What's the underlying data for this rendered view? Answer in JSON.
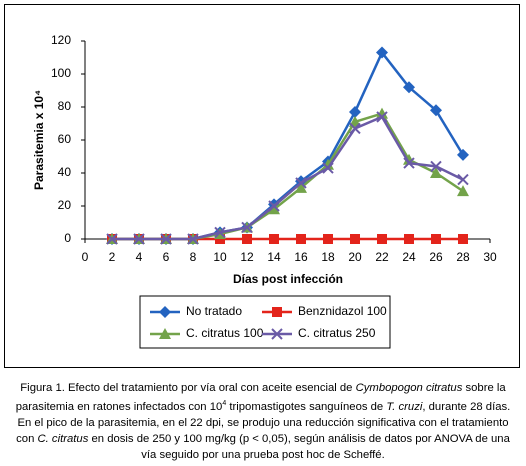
{
  "chart_data": {
    "type": "line",
    "x_label": "Días post infección",
    "y_label": "Parasitemia x 10⁴",
    "x": [
      2,
      4,
      6,
      8,
      10,
      12,
      14,
      16,
      18,
      20,
      22,
      24,
      26,
      28
    ],
    "xlim": [
      0,
      30
    ],
    "xticks": [
      0,
      2,
      4,
      6,
      8,
      10,
      12,
      14,
      16,
      18,
      20,
      22,
      24,
      26,
      28,
      30
    ],
    "ylim": [
      0,
      120
    ],
    "yticks": [
      0,
      20,
      40,
      60,
      80,
      100,
      120
    ],
    "grid": false,
    "legend": "bottom",
    "series": [
      {
        "name": "No tratado",
        "color": "#2363c0",
        "marker": "diamond",
        "values": [
          0,
          0,
          0,
          0,
          4,
          7,
          21,
          35,
          47,
          77,
          113,
          92,
          78,
          51
        ]
      },
      {
        "name": "Benznidazol 100",
        "color": "#e3241b",
        "marker": "square",
        "values": [
          0,
          0,
          0,
          0,
          0,
          0,
          0,
          0,
          0,
          0,
          0,
          0,
          0,
          0
        ]
      },
      {
        "name": "C. citratus 100",
        "color": "#73a34a",
        "marker": "triangle",
        "values": [
          0,
          0,
          0,
          0,
          3,
          7,
          18,
          31,
          45,
          71,
          76,
          48,
          40,
          29
        ]
      },
      {
        "name": "C. citratus 250",
        "color": "#6a5aa6",
        "marker": "x",
        "values": [
          0,
          0,
          0,
          0,
          4,
          7,
          20,
          34,
          43,
          67,
          74,
          46,
          44,
          36
        ]
      }
    ]
  },
  "caption": {
    "lines": [
      [
        {
          "text": "Figura 1.  Efecto del tratamiento por vía oral con aceite esencial de "
        },
        {
          "text": "Cymbopogon citratus",
          "style": "italic"
        },
        {
          "text": " sobre la"
        }
      ],
      [
        {
          "text": "parasitemia en ratones infectados con 10"
        },
        {
          "text": "4",
          "style": "sup"
        },
        {
          "text": " tripomastigotes sanguíneos de "
        },
        {
          "text": "T. cruzi",
          "style": "italic"
        },
        {
          "text": ", durante 28 días."
        }
      ],
      [
        {
          "text": "En el pico de la parasitemia, en el 22 dpi, se produjo una reducción significativa con el tratamiento"
        }
      ],
      [
        {
          "text": "con "
        },
        {
          "text": "C. citratus",
          "style": "italic"
        },
        {
          "text": " en dosis de 250 y 100 mg/kg (p < 0,05), según análisis de datos por ANOVA de una"
        }
      ],
      [
        {
          "text": "vía seguido por una prueba post hoc de Scheffé."
        }
      ]
    ]
  }
}
